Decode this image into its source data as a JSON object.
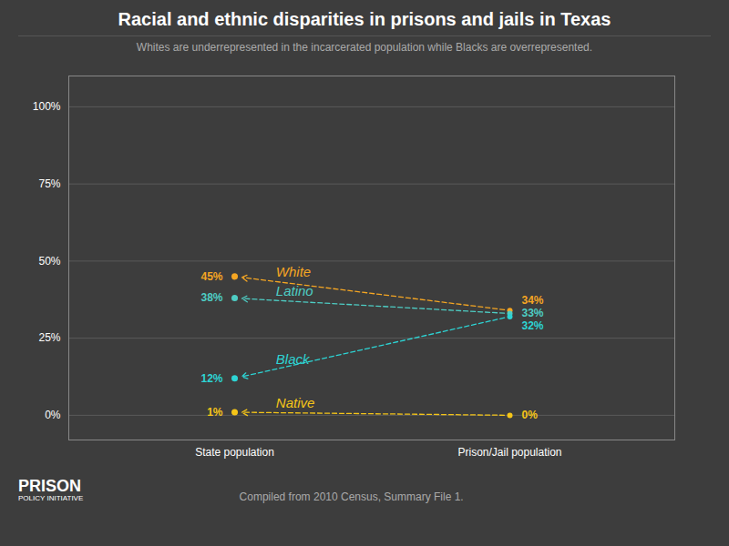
{
  "chart_data": {
    "type": "slope",
    "title": "Racial and ethnic disparities in prisons and jails in Texas",
    "subtitle": "Whites are underrepresented in the incarcerated population while Blacks are overrepresented.",
    "caption": "Compiled from 2010 Census, Summary File 1.",
    "annotations": [
      "PRISON",
      "POLICY INITIATIVE"
    ],
    "categories": [
      "State population",
      "Prison/Jail population"
    ],
    "series": [
      {
        "name": "White",
        "color": "#f5a623",
        "values": [
          45,
          34
        ],
        "value_labels": [
          "45%",
          "34%"
        ]
      },
      {
        "name": "Latino",
        "color": "#4ecdc4",
        "values": [
          38,
          33
        ],
        "value_labels": [
          "38%",
          "33%"
        ]
      },
      {
        "name": "Black",
        "color": "#2dd4d4",
        "values": [
          12,
          32
        ],
        "value_labels": [
          "12%",
          "32%"
        ]
      },
      {
        "name": "Native",
        "color": "#f5c518",
        "values": [
          1,
          0
        ],
        "value_labels": [
          "1%",
          "0%"
        ]
      }
    ],
    "ylim": [
      -8,
      110
    ],
    "yticks": [
      {
        "value": 0,
        "label": "0%"
      },
      {
        "value": 25,
        "label": "25%"
      },
      {
        "value": 50,
        "label": "50%"
      },
      {
        "value": 75,
        "label": "75%"
      },
      {
        "value": 100,
        "label": "100%"
      }
    ],
    "grid": true,
    "data_labels": true
  }
}
